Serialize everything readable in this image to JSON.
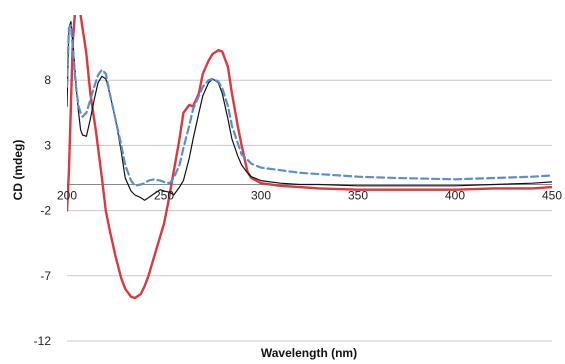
{
  "chart_data": {
    "type": "line",
    "title": "",
    "xlabel": "Wavelength (nm)",
    "ylabel": "CD (mdeg)",
    "xlim": [
      200,
      450
    ],
    "ylim": [
      -12,
      13
    ],
    "grid": true,
    "x_ticks": [
      {
        "value": 200,
        "label": "200"
      },
      {
        "value": 250,
        "label": "250"
      },
      {
        "value": 300,
        "label": "300"
      },
      {
        "value": 350,
        "label": "350"
      },
      {
        "value": 400,
        "label": "400"
      },
      {
        "value": 450,
        "label": "450"
      }
    ],
    "y_ticks": [
      {
        "value": 8,
        "label": "8"
      },
      {
        "value": 3,
        "label": "3"
      },
      {
        "value": -2,
        "label": "-2"
      },
      {
        "value": -7,
        "label": "-7"
      },
      {
        "value": -12,
        "label": "-12"
      }
    ],
    "series": [
      {
        "color": "#d9393f",
        "dash": "solid",
        "width": 2.4,
        "x": [
          200,
          201,
          202,
          203,
          204,
          205,
          206,
          207,
          208,
          209,
          210,
          212,
          215,
          218,
          220,
          222,
          225,
          228,
          230,
          233,
          235,
          238,
          240,
          242,
          245,
          248,
          250,
          252,
          255,
          258,
          260,
          263,
          265,
          268,
          270,
          273,
          275,
          278,
          280,
          283,
          285,
          288,
          290,
          293,
          295,
          300,
          310,
          320,
          330,
          350,
          370,
          400,
          420,
          440,
          450
        ],
        "y": [
          -2,
          1,
          6,
          11,
          13,
          14,
          13.5,
          13,
          12,
          11,
          10,
          7,
          4,
          0.5,
          -2,
          -3.5,
          -5.5,
          -7.2,
          -8,
          -8.6,
          -8.7,
          -8.4,
          -7.8,
          -7,
          -5.5,
          -4,
          -3,
          -1.5,
          1,
          3.5,
          5.5,
          6.1,
          6,
          7,
          8.5,
          9.5,
          10,
          10.3,
          10.2,
          9,
          7,
          4.5,
          3,
          1,
          0.5,
          0.1,
          -0.1,
          -0.2,
          -0.3,
          -0.4,
          -0.4,
          -0.4,
          -0.3,
          -0.3,
          -0.2
        ]
      },
      {
        "color": "#111111",
        "dash": "solid",
        "width": 1.2,
        "x": [
          200,
          201,
          202,
          203,
          204,
          205,
          206,
          207,
          208,
          210,
          212,
          214,
          216,
          218,
          220,
          222,
          225,
          228,
          230,
          233,
          235,
          238,
          240,
          242,
          245,
          248,
          250,
          253,
          255,
          258,
          260,
          263,
          265,
          268,
          270,
          273,
          275,
          278,
          280,
          283,
          285,
          288,
          290,
          293,
          295,
          300,
          310,
          320,
          330,
          350,
          370,
          400,
          420,
          440,
          450
        ],
        "y": [
          6,
          12,
          12.5,
          11,
          9,
          7,
          5.5,
          4.2,
          3.8,
          3.7,
          5,
          6.5,
          7.8,
          8.3,
          8.1,
          7,
          5,
          2.5,
          0.5,
          -0.5,
          -0.8,
          -1,
          -1.2,
          -1,
          -0.7,
          -0.4,
          -0.5,
          -0.6,
          -0.8,
          -0.2,
          0.3,
          2,
          3.5,
          5.5,
          6.8,
          7.8,
          8.1,
          7.8,
          7,
          5,
          3.5,
          2.2,
          1.5,
          0.9,
          0.6,
          0.3,
          0.1,
          0,
          0,
          -0.1,
          -0.1,
          -0.1,
          0,
          0.1,
          0.2
        ]
      },
      {
        "color": "#5b8fc9",
        "dash": "dashed",
        "width": 2.2,
        "x": [
          200,
          201,
          202,
          203,
          204,
          205,
          206,
          207,
          208,
          210,
          212,
          214,
          216,
          218,
          220,
          222,
          225,
          228,
          230,
          233,
          235,
          238,
          240,
          242,
          245,
          248,
          250,
          253,
          255,
          258,
          260,
          263,
          265,
          268,
          270,
          273,
          275,
          278,
          280,
          283,
          285,
          288,
          290,
          293,
          295,
          300,
          310,
          320,
          330,
          350,
          370,
          400,
          420,
          440,
          450
        ],
        "y": [
          7.5,
          12,
          12.2,
          10.5,
          8.5,
          7,
          6,
          5.5,
          5.2,
          5.5,
          6.5,
          7.5,
          8.4,
          8.8,
          8.5,
          7,
          5,
          3,
          1.5,
          0.3,
          -0.1,
          0,
          0.1,
          0.3,
          0.4,
          0.3,
          0.2,
          0.1,
          0.5,
          1.5,
          2.8,
          4.5,
          5.8,
          6.8,
          7.5,
          8,
          8.1,
          7.9,
          7.4,
          6,
          4.5,
          3.2,
          2.3,
          1.9,
          1.6,
          1.3,
          1.1,
          0.9,
          0.8,
          0.6,
          0.5,
          0.4,
          0.5,
          0.6,
          0.7
        ]
      }
    ]
  }
}
